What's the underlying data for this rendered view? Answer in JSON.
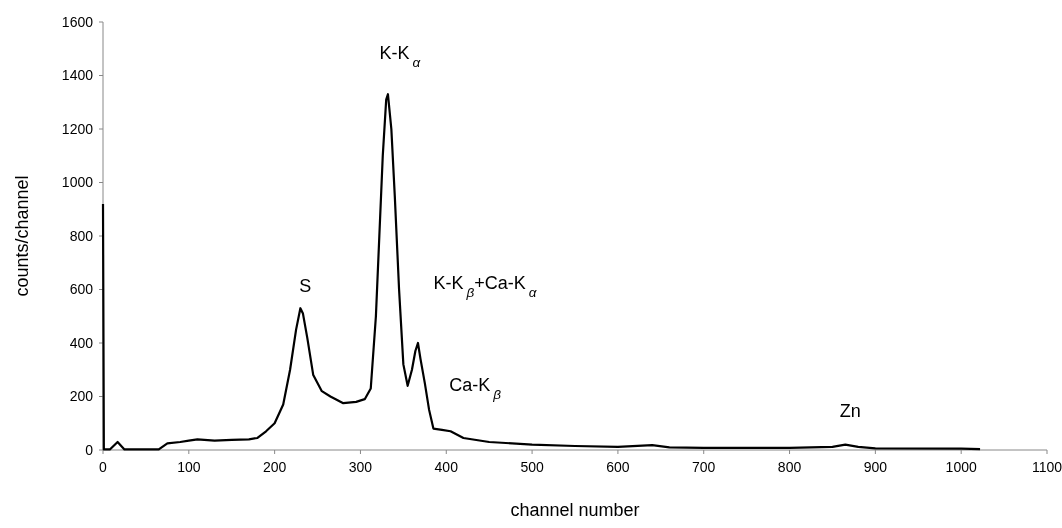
{
  "chart_data": {
    "type": "line",
    "xlabel": "channel number",
    "ylabel": "counts/channel",
    "x": [
      0,
      1,
      8,
      17,
      25,
      65,
      75,
      90,
      100,
      110,
      130,
      150,
      170,
      180,
      190,
      200,
      210,
      218,
      225,
      230,
      233,
      238,
      245,
      255,
      265,
      280,
      295,
      305,
      312,
      318,
      322,
      326,
      330,
      332,
      336,
      340,
      345,
      350,
      355,
      360,
      364,
      367,
      370,
      375,
      380,
      385,
      395,
      405,
      420,
      450,
      500,
      550,
      600,
      640,
      660,
      700,
      800,
      850,
      865,
      880,
      900,
      1000,
      1022
    ],
    "series": [
      {
        "color": "#000000",
        "values": [
          920,
          2,
          2,
          30,
          2,
          2,
          25,
          30,
          35,
          40,
          35,
          38,
          40,
          45,
          70,
          100,
          170,
          300,
          450,
          530,
          510,
          420,
          280,
          220,
          200,
          175,
          180,
          190,
          230,
          500,
          800,
          1100,
          1310,
          1330,
          1200,
          950,
          600,
          320,
          240,
          300,
          370,
          400,
          340,
          250,
          150,
          80,
          75,
          70,
          45,
          30,
          20,
          15,
          12,
          18,
          10,
          8,
          8,
          12,
          20,
          12,
          6,
          5,
          3
        ]
      }
    ],
    "xlim": [
      0,
      1100
    ],
    "xticks": [
      0,
      100,
      200,
      300,
      400,
      500,
      600,
      700,
      800,
      900,
      1000,
      1100
    ],
    "ylim": [
      0,
      1600
    ],
    "yticks": [
      0,
      200,
      400,
      600,
      800,
      1000,
      1200,
      1400,
      1600
    ],
    "grid": false,
    "marker": "none",
    "line_style": "solid",
    "annotations": [
      {
        "text": "S",
        "x": 230,
        "y": 530
      },
      {
        "text": "K-K$_{α}$",
        "x": 332,
        "y": 1330
      },
      {
        "text": "K-K$_{β}$+Ca-K$_{α}$",
        "x": 367,
        "y": 400
      },
      {
        "text": "Ca-K$_{β}$",
        "x": 380,
        "y": 150
      },
      {
        "text": "Zn",
        "x": 865,
        "y": 20
      }
    ]
  }
}
